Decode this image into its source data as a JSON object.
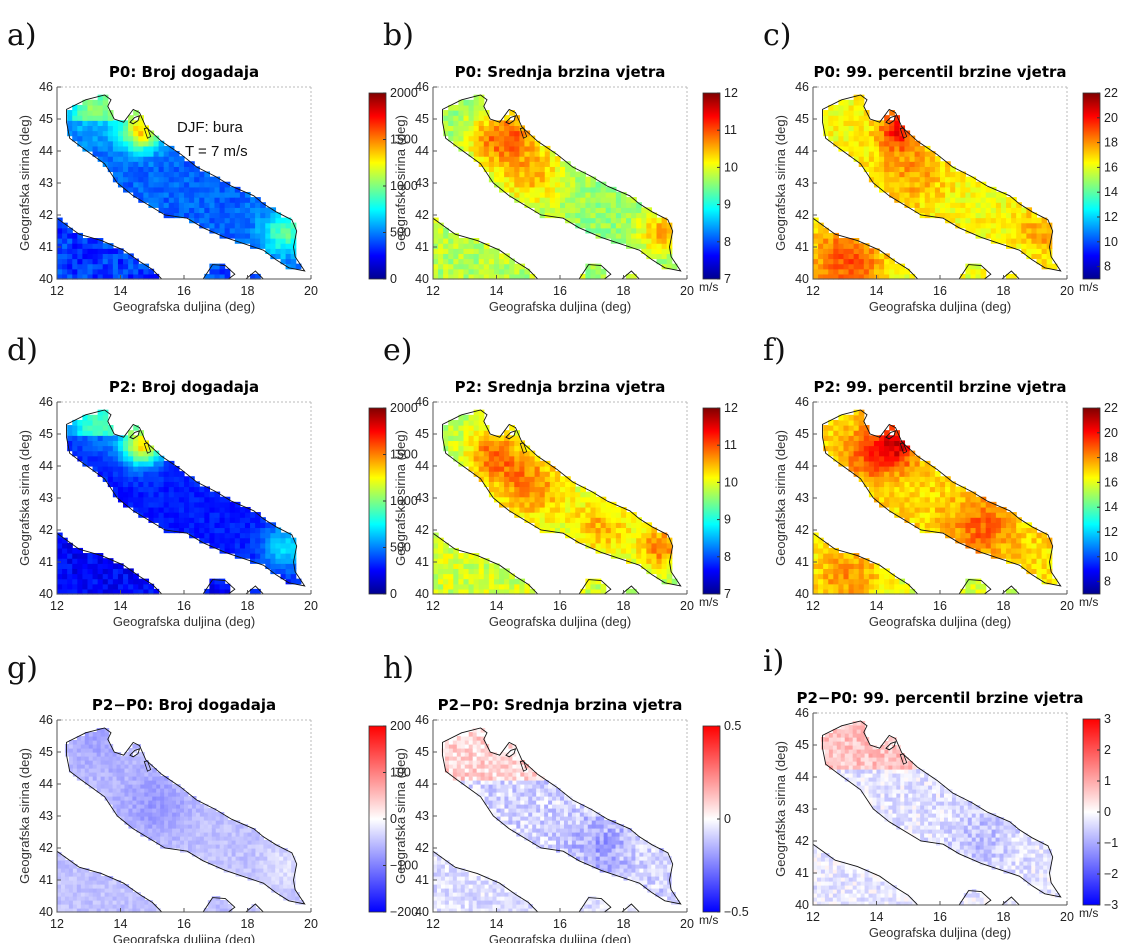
{
  "figure": {
    "x_axis_label": "Geografska duljina (deg)",
    "y_axis_label": "Geografska sirina (deg)",
    "x_ticks": [
      "12",
      "14",
      "16",
      "18",
      "20"
    ],
    "y_ticks": [
      "40",
      "41",
      "42",
      "43",
      "44",
      "45",
      "46"
    ],
    "annotation_line1": "DJF: bura",
    "annotation_line2": "T = 7 m/s"
  },
  "panels": [
    {
      "letter": "a)",
      "title": "P0: Broj dogadaja",
      "cbar_ticks": [
        "0",
        "500",
        "1000",
        "1500",
        "2000"
      ],
      "cbar_range": [
        0,
        2000
      ],
      "unit": "",
      "colormap": "jet"
    },
    {
      "letter": "b)",
      "title": "P0: Srednja brzina vjetra",
      "cbar_ticks": [
        "7",
        "8",
        "9",
        "10",
        "11",
        "12"
      ],
      "cbar_range": [
        7,
        12
      ],
      "unit": "m/s",
      "colormap": "jet"
    },
    {
      "letter": "c)",
      "title": "P0: 99. percentil brzine vjetra",
      "cbar_ticks": [
        "8",
        "10",
        "12",
        "14",
        "16",
        "18",
        "20",
        "22"
      ],
      "cbar_range": [
        7,
        22
      ],
      "unit": "m/s",
      "colormap": "jet"
    },
    {
      "letter": "d)",
      "title": "P2: Broj dogadaja",
      "cbar_ticks": [
        "0",
        "500",
        "1000",
        "1500",
        "2000"
      ],
      "cbar_range": [
        0,
        2000
      ],
      "unit": "",
      "colormap": "jet"
    },
    {
      "letter": "e)",
      "title": "P2: Srednja brzina vjetra",
      "cbar_ticks": [
        "7",
        "8",
        "9",
        "10",
        "11",
        "12"
      ],
      "cbar_range": [
        7,
        12
      ],
      "unit": "m/s",
      "colormap": "jet"
    },
    {
      "letter": "f)",
      "title": "P2: 99. percentil brzine vjetra",
      "cbar_ticks": [
        "8",
        "10",
        "12",
        "14",
        "16",
        "18",
        "20",
        "22"
      ],
      "cbar_range": [
        7,
        22
      ],
      "unit": "m/s",
      "colormap": "jet"
    },
    {
      "letter": "g)",
      "title": "P2−P0: Broj dogadaja",
      "cbar_ticks": [
        "−200",
        "−100",
        "0",
        "100",
        "200"
      ],
      "cbar_range": [
        -200,
        200
      ],
      "unit": "",
      "colormap": "bwr"
    },
    {
      "letter": "h)",
      "title": "P2−P0: Srednja brzina vjetra",
      "cbar_ticks": [
        "−0.5",
        "0",
        "0.5"
      ],
      "cbar_range": [
        -0.5,
        0.5
      ],
      "unit": "m/s",
      "colormap": "bwr"
    },
    {
      "letter": "i)",
      "title": "P2−P0: 99. percentil brzine vjetra",
      "cbar_ticks": [
        "−3",
        "−2",
        "−1",
        "0",
        "1",
        "2",
        "3"
      ],
      "cbar_range": [
        -3,
        3
      ],
      "unit": "m/s",
      "colormap": "bwr"
    }
  ],
  "colors": {
    "jet": [
      "#00008f",
      "#0000ff",
      "#0080ff",
      "#00ffff",
      "#80ff80",
      "#ffff00",
      "#ff8000",
      "#ff0000",
      "#800000"
    ],
    "bwr": [
      "#0000ff",
      "#8080ff",
      "#ffffff",
      "#ff8080",
      "#ff0000"
    ],
    "coast": "#111111",
    "grid": "#bbbbbb"
  }
}
